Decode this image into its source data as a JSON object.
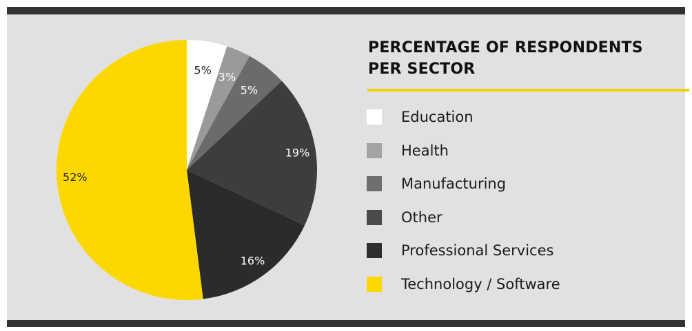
{
  "chart_data": {
    "type": "pie",
    "title": "PERCENTAGE OF RESPONDENTS PER SECTOR",
    "slices": [
      {
        "label": "Education",
        "value": 5,
        "display": "5%",
        "color": "#ffffff",
        "text_color": "#222222"
      },
      {
        "label": "Health",
        "value": 3,
        "display": "3%",
        "color": "#9a9a9a",
        "text_color": "#ffffff"
      },
      {
        "label": "Manufacturing",
        "value": 5,
        "display": "5%",
        "color": "#6b6b6b",
        "text_color": "#ffffff"
      },
      {
        "label": "Other",
        "value": 19,
        "display": "19%",
        "color": "#3d3d3d",
        "text_color": "#ffffff"
      },
      {
        "label": "Professional Services",
        "value": 16,
        "display": "16%",
        "color": "#2b2b2b",
        "text_color": "#ffffff"
      },
      {
        "label": "Technology / Software",
        "value": 52,
        "display": "52%",
        "color": "#fdd800",
        "text_color": "#222222"
      }
    ],
    "legend_position": "right"
  },
  "legend": [
    {
      "label": "Education",
      "color": "#ffffff"
    },
    {
      "label": "Health",
      "color": "#a3a3a3"
    },
    {
      "label": "Manufacturing",
      "color": "#6e6e6e"
    },
    {
      "label": "Other",
      "color": "#4a4a4a"
    },
    {
      "label": "Professional Services",
      "color": "#2e2e2e"
    },
    {
      "label": "Technology / Software",
      "color": "#fdd800"
    }
  ],
  "colors": {
    "background": "#e1e1e1",
    "frame_bars": "#333333",
    "accent": "#f5d000"
  }
}
